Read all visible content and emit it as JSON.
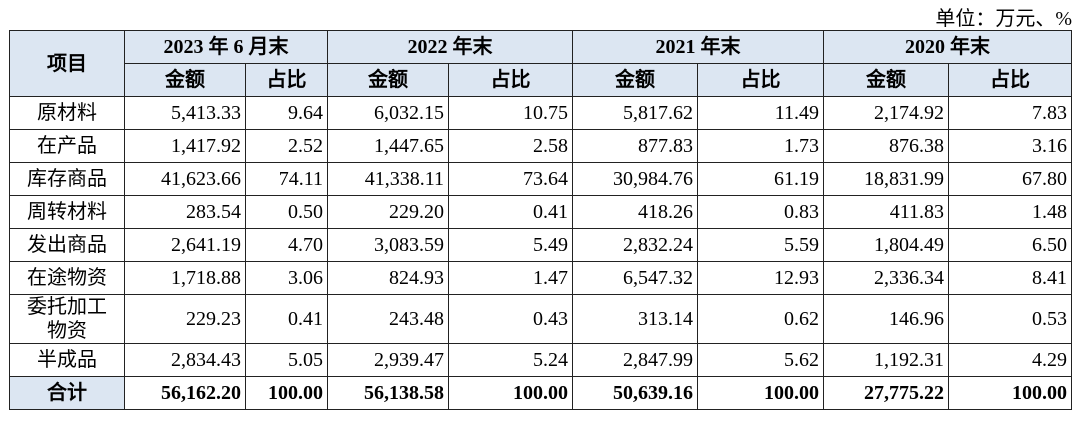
{
  "header": {
    "unit": "单位：万元、%"
  },
  "table": {
    "corner": "项目",
    "groups": [
      "2023 年 6 月末",
      "2022 年末",
      "2021 年末",
      "2020 年末"
    ],
    "subheaders": [
      "金额",
      "占比",
      "金额",
      "占比",
      "金额",
      "占比",
      "金额",
      "占比"
    ],
    "rows": [
      {
        "label": "原材料",
        "cells": [
          "5,413.33",
          "9.64",
          "6,032.15",
          "10.75",
          "5,817.62",
          "11.49",
          "2,174.92",
          "7.83"
        ]
      },
      {
        "label": "在产品",
        "cells": [
          "1,417.92",
          "2.52",
          "1,447.65",
          "2.58",
          "877.83",
          "1.73",
          "876.38",
          "3.16"
        ]
      },
      {
        "label": "库存商品",
        "cells": [
          "41,623.66",
          "74.11",
          "41,338.11",
          "73.64",
          "30,984.76",
          "61.19",
          "18,831.99",
          "67.80"
        ]
      },
      {
        "label": "周转材料",
        "cells": [
          "283.54",
          "0.50",
          "229.20",
          "0.41",
          "418.26",
          "0.83",
          "411.83",
          "1.48"
        ]
      },
      {
        "label": "发出商品",
        "cells": [
          "2,641.19",
          "4.70",
          "3,083.59",
          "5.49",
          "2,832.24",
          "5.59",
          "1,804.49",
          "6.50"
        ]
      },
      {
        "label": "在途物资",
        "cells": [
          "1,718.88",
          "3.06",
          "824.93",
          "1.47",
          "6,547.32",
          "12.93",
          "2,336.34",
          "8.41"
        ]
      },
      {
        "label": "委托加工物资",
        "cells": [
          "229.23",
          "0.41",
          "243.48",
          "0.43",
          "313.14",
          "0.62",
          "146.96",
          "0.53"
        ]
      },
      {
        "label": "半成品",
        "cells": [
          "2,834.43",
          "5.05",
          "2,939.47",
          "5.24",
          "2,847.99",
          "5.62",
          "1,192.31",
          "4.29"
        ]
      }
    ],
    "total": {
      "label": "合计",
      "cells": [
        "56,162.20",
        "100.00",
        "56,138.58",
        "100.00",
        "50,639.16",
        "100.00",
        "27,775.22",
        "100.00"
      ]
    }
  }
}
